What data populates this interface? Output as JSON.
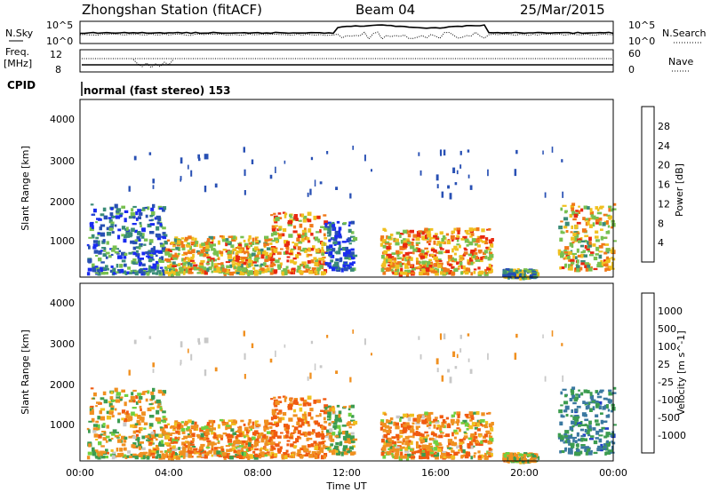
{
  "header": {
    "station": "Zhongshan Station (fitACF)",
    "beam": "Beam 04",
    "date": "25/Mar/2015"
  },
  "strips": {
    "nsky_label": "N.Sky",
    "nsky_ticks": [
      "10^5",
      "10^0"
    ],
    "nsearch_label": "N.Search",
    "nsearch_ticks": [
      "10^5",
      "10^0"
    ],
    "freq_label_1": "Freq.",
    "freq_label_2": "[MHz]",
    "freq_ticks": [
      "12",
      "8"
    ],
    "nave_label": "Nave",
    "nave_ticks": [
      "60",
      "0"
    ],
    "cpid_label": "CPID",
    "cpid_value": "normal (fast stereo) 153"
  },
  "axes": {
    "ylabel": "Slant Range [km]",
    "xlabel": "Time UT",
    "y_ticks": [
      "1000",
      "2000",
      "3000",
      "4000"
    ],
    "x_ticks": [
      "00:00",
      "04:00",
      "08:00",
      "12:00",
      "16:00",
      "20:00",
      "00:00"
    ]
  },
  "colorbars": {
    "power": {
      "label": "Power [dB]",
      "ticks": [
        "4",
        "8",
        "12",
        "16",
        "20",
        "24",
        "28"
      ],
      "colors": [
        "#1a2cf0",
        "#2850b4",
        "#3a8c78",
        "#78c050",
        "#f0c020",
        "#f07818",
        "#e82810"
      ]
    },
    "velocity": {
      "label": "Velocity [m s^-1]",
      "ticks": [
        "1000",
        "500",
        "100",
        "25",
        "-25",
        "-100",
        "-500",
        "-1000"
      ],
      "colors": [
        "#1e3cc8",
        "#3a78a0",
        "#3c9c50",
        "#70d040",
        "#c8c8c8",
        "#f0c020",
        "#f09020",
        "#f05a10",
        "#e01e0e"
      ]
    }
  },
  "chart_data": {
    "type": "heatmap",
    "title": "Zhongshan Station (fitACF) Beam 04 25/Mar/2015",
    "xlabel": "Time UT",
    "ylabel": "Slant Range [km]",
    "x_range_hours": [
      0,
      24
    ],
    "y_range_km": [
      180,
      4500
    ],
    "panels": [
      "Power [dB]",
      "Velocity [m s^-1]"
    ],
    "echo_regions": [
      {
        "t_start": 0.3,
        "t_end": 3.8,
        "range_min": 300,
        "range_max": 2000,
        "power_db": 10,
        "velocity": -100
      },
      {
        "t_start": 3.8,
        "t_end": 8.5,
        "range_min": 300,
        "range_max": 1200,
        "power_db": 20,
        "velocity": -300
      },
      {
        "t_start": 8.5,
        "t_end": 11.0,
        "range_min": 300,
        "range_max": 1800,
        "power_db": 22,
        "velocity": -500
      },
      {
        "t_start": 11.0,
        "t_end": 12.3,
        "range_min": 400,
        "range_max": 1600,
        "power_db": 8,
        "velocity": 50
      },
      {
        "t_start": 13.5,
        "t_end": 18.5,
        "range_min": 300,
        "range_max": 1400,
        "power_db": 22,
        "velocity": -300
      },
      {
        "t_start": 19.0,
        "t_end": 20.5,
        "range_min": 200,
        "range_max": 400,
        "power_db": 14,
        "velocity": -100
      },
      {
        "t_start": 21.5,
        "t_end": 24.0,
        "range_min": 400,
        "range_max": 2000,
        "power_db": 20,
        "velocity": 600
      }
    ]
  }
}
